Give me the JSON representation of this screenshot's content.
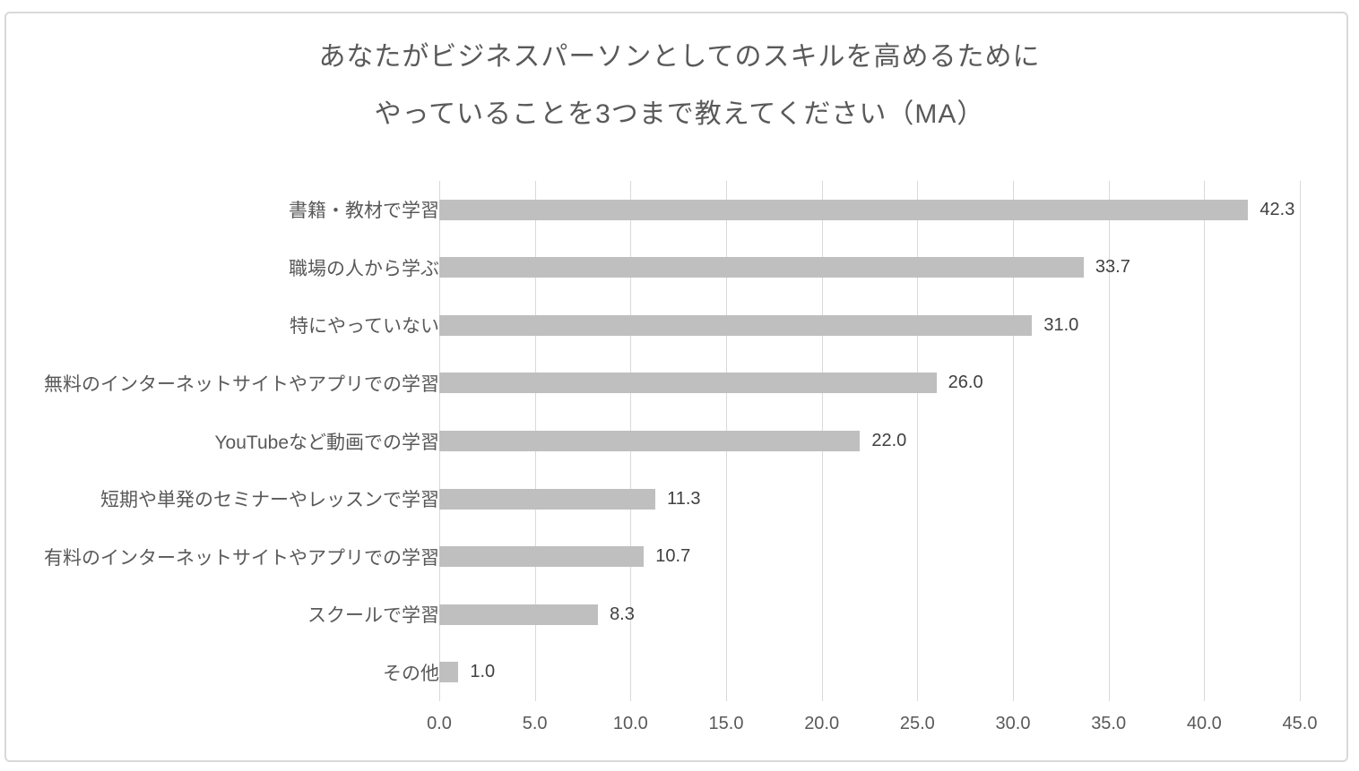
{
  "title": {
    "line1": "あなたがビジネスパーソンとしてのスキルを高めるために",
    "line2": "やっていることを3つまで教えてください（MA）"
  },
  "chart_data": {
    "type": "bar",
    "orientation": "horizontal",
    "title": "あなたがビジネスパーソンとしてのスキルを高めるために やっていることを3つまで教えてください（MA）",
    "categories": [
      "書籍・教材で学習",
      "職場の人から学ぶ",
      "特にやっていない",
      "無料のインターネットサイトやアプリでの学習",
      "YouTubeなど動画での学習",
      "短期や単発のセミナーやレッスンで学習",
      "有料のインターネットサイトやアプリでの学習",
      "スクールで学習",
      "その他"
    ],
    "values": [
      42.3,
      33.7,
      31.0,
      26.0,
      22.0,
      11.3,
      10.7,
      8.3,
      1.0
    ],
    "value_labels": [
      "42.3",
      "33.7",
      "31.0",
      "26.0",
      "22.0",
      "11.3",
      "10.7",
      "8.3",
      "1.0"
    ],
    "xlabel": "",
    "ylabel": "",
    "xlim": [
      0,
      45
    ],
    "x_ticks": [
      "0.0",
      "5.0",
      "10.0",
      "15.0",
      "20.0",
      "25.0",
      "30.0",
      "35.0",
      "40.0",
      "45.0"
    ],
    "grid": "vertical-only",
    "legend": "none",
    "data_labels": "outside-end",
    "colors": {
      "bar": "#bfbfbf",
      "gridline": "#d9d9d9",
      "frame_border": "#d9d9d9",
      "title_text": "#595959",
      "category_text": "#595959",
      "value_text": "#404040",
      "tick_text": "#595959",
      "background": "#ffffff"
    }
  }
}
